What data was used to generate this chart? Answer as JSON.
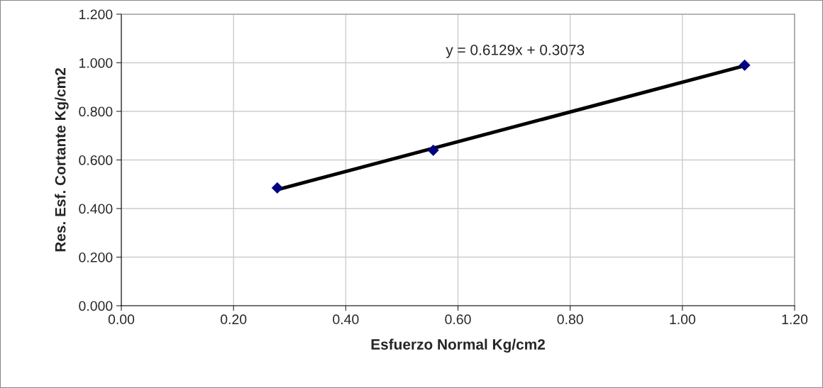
{
  "chart_data": {
    "type": "scatter",
    "xlabel": "Esfuerzo Normal Kg/cm2",
    "ylabel": "Res. Esf. Cortante Kg/cm2",
    "annotations": [
      "y = 0.6129x + 0.3073"
    ],
    "series": [
      {
        "color": "#000080",
        "x": [
          0.278,
          0.556,
          1.111
        ],
        "values": [
          0.485,
          0.64,
          0.99
        ],
        "marker": "diamond"
      },
      {
        "type": "line",
        "color": "#000000",
        "x": [
          0.278,
          1.111
        ],
        "values": [
          0.478,
          0.988
        ]
      }
    ],
    "xlim": [
      0,
      1.2
    ],
    "ylim": [
      0,
      1.2
    ],
    "xticks": [
      {
        "value": 0,
        "label": "0.00"
      },
      {
        "value": 0.2,
        "label": "0.20"
      },
      {
        "value": 0.4,
        "label": "0.40"
      },
      {
        "value": 0.6,
        "label": "0.60"
      },
      {
        "value": 0.8,
        "label": "0.80"
      },
      {
        "value": 1.0,
        "label": "1.00"
      },
      {
        "value": 1.2,
        "label": "1.20"
      }
    ],
    "yticks": [
      {
        "value": 0,
        "label": "0.000"
      },
      {
        "value": 0.2,
        "label": "0.200"
      },
      {
        "value": 0.4,
        "label": "0.400"
      },
      {
        "value": 0.6,
        "label": "0.600"
      },
      {
        "value": 0.8,
        "label": "0.800"
      },
      {
        "value": 1.0,
        "label": "1.000"
      },
      {
        "value": 1.2,
        "label": "1.200"
      }
    ],
    "grid": true,
    "legend": false
  }
}
